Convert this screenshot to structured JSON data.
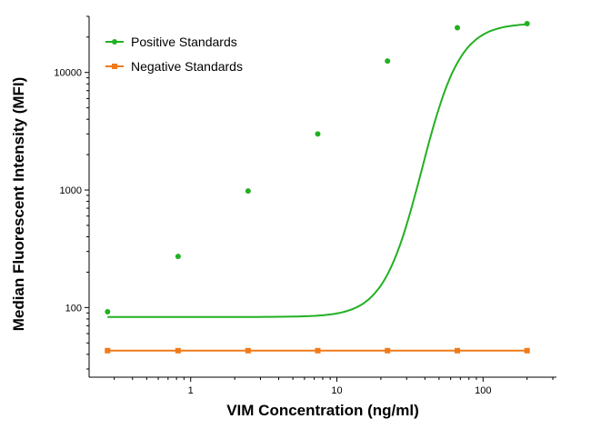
{
  "chart_data": {
    "type": "line",
    "title": "",
    "xlabel": "VIM Concentration (ng/ml)",
    "ylabel": "Median Fluorescent Intensity (MFI)",
    "xscale": "log",
    "yscale": "log",
    "xlim": [
      0.22,
      300
    ],
    "ylim": [
      30,
      30000
    ],
    "x_ticks": [
      1,
      10,
      100
    ],
    "x_tick_labels": [
      "1",
      "10",
      "100"
    ],
    "y_ticks": [
      100,
      1000,
      10000
    ],
    "y_tick_labels": [
      "100",
      "1000",
      "10000"
    ],
    "grid": false,
    "legend_position": "top-left",
    "series": [
      {
        "name": "Positive Standards",
        "color": "#22b022",
        "marker": "circle",
        "x": [
          0.27,
          0.82,
          2.47,
          7.4,
          22.2,
          66.7,
          200
        ],
        "y": [
          92,
          272,
          980,
          3000,
          12500,
          24000,
          26000
        ]
      },
      {
        "name": "Negative Standards",
        "color": "#f07a1a",
        "marker": "square",
        "x": [
          0.27,
          0.82,
          2.47,
          7.4,
          22.2,
          66.7,
          200
        ],
        "y": [
          43,
          43,
          43,
          43,
          43,
          43,
          43
        ]
      }
    ]
  }
}
